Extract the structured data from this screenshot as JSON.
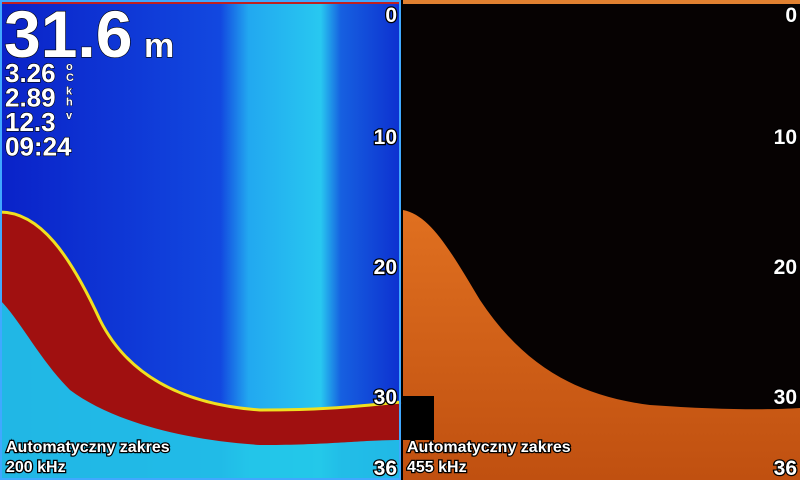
{
  "readouts": {
    "depth": "31.6",
    "depth_unit": "m",
    "rows": [
      {
        "value": "3.26",
        "unit": [
          "o",
          "C"
        ]
      },
      {
        "value": "2.89",
        "unit": [
          "k",
          "h"
        ]
      },
      {
        "value": "12.3",
        "unit": [
          "v"
        ]
      },
      {
        "value": "09:24",
        "unit": []
      }
    ]
  },
  "depth_scale": {
    "range": [
      0,
      36
    ],
    "ticks": [
      0,
      10,
      20,
      30,
      36
    ]
  },
  "panels": [
    {
      "mode": "Automatyczny zakres",
      "frequency": "200 kHz"
    },
    {
      "mode": "Automatyczny zakres",
      "frequency": "455 kHz"
    }
  ]
}
